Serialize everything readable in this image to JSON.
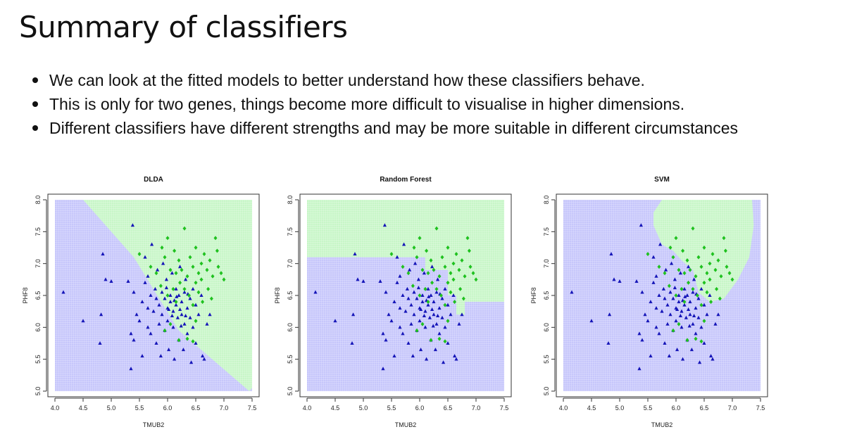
{
  "slide": {
    "title": "Summary of classifiers",
    "bullets": [
      "We can look at the fitted models to better understand how these classifiers behave.",
      "This is only for two genes, things become more difficult to visualise in higher dimensions.",
      "Different classifiers have different strengths and may be more suitable in different circumstances"
    ]
  },
  "colors": {
    "region_blue": "#c6c6fb",
    "region_green": "#c7f6c7",
    "point_blue": "#1515b8",
    "point_green": "#1fc11f"
  },
  "chart_data": [
    {
      "type": "scatter",
      "title": "DLDA",
      "xlabel": "TMUB2",
      "ylabel": "PHF8",
      "xlim": [
        4.0,
        7.5
      ],
      "ylim": [
        5.0,
        8.0
      ],
      "xticks": [
        "4.0",
        "4.5",
        "5.0",
        "5.5",
        "6.0",
        "6.5",
        "7.0",
        "7.5"
      ],
      "yticks": [
        "5.0",
        "5.5",
        "6.0",
        "6.5",
        "7.0",
        "7.5",
        "8.0"
      ],
      "background": "gridded decision regions (blue / green)",
      "regions": {
        "green": [
          [
            4.5,
            8.0
          ],
          [
            7.5,
            8.0
          ],
          [
            7.5,
            5.05
          ],
          [
            7.45,
            5.0
          ],
          [
            6.2,
            5.95
          ],
          [
            5.4,
            7.1
          ]
        ]
      },
      "series": []
    },
    {
      "type": "scatter",
      "title": "Random Forest",
      "xlabel": "TMUB2",
      "ylabel": "PHF8",
      "xlim": [
        4.0,
        7.5
      ],
      "ylim": [
        5.0,
        8.0
      ],
      "xticks": [
        "4.0",
        "4.5",
        "5.0",
        "5.5",
        "6.0",
        "6.5",
        "7.0",
        "7.5"
      ],
      "yticks": [
        "5.0",
        "5.5",
        "6.0",
        "6.5",
        "7.0",
        "7.5",
        "8.0"
      ],
      "background": "gridded decision regions (blue / green)",
      "regions": {
        "green": [
          [
            4.0,
            8.0
          ],
          [
            7.5,
            8.0
          ],
          [
            7.5,
            6.4
          ],
          [
            6.8,
            6.4
          ],
          [
            6.8,
            6.2
          ],
          [
            6.65,
            6.2
          ],
          [
            6.65,
            6.5
          ],
          [
            6.5,
            6.5
          ],
          [
            6.5,
            6.9
          ],
          [
            6.1,
            6.9
          ],
          [
            6.1,
            7.1
          ],
          [
            4.0,
            7.1
          ]
        ],
        "blue": [
          [
            4.0,
            7.0
          ],
          [
            5.0,
            7.0
          ],
          [
            5.0,
            7.1
          ],
          [
            4.0,
            7.1
          ]
        ]
      },
      "series": []
    },
    {
      "type": "scatter",
      "title": "SVM",
      "xlabel": "TMUB2",
      "ylabel": "PHF8",
      "xlim": [
        4.0,
        7.5
      ],
      "ylim": [
        5.0,
        8.0
      ],
      "xticks": [
        "4.0",
        "4.5",
        "5.0",
        "5.5",
        "6.0",
        "6.5",
        "7.0",
        "7.5"
      ],
      "yticks": [
        "5.0",
        "5.5",
        "6.0",
        "6.5",
        "7.0",
        "7.5",
        "8.0"
      ],
      "background": "gridded decision regions (blue / green)",
      "regions": {
        "green": [
          [
            5.75,
            8.0
          ],
          [
            7.35,
            8.0
          ],
          [
            7.38,
            7.6
          ],
          [
            7.3,
            7.1
          ],
          [
            7.1,
            6.75
          ],
          [
            6.85,
            6.45
          ],
          [
            6.6,
            6.4
          ],
          [
            6.4,
            6.55
          ],
          [
            6.3,
            6.9
          ],
          [
            6.1,
            7.05
          ],
          [
            5.95,
            7.2
          ],
          [
            5.75,
            7.3
          ],
          [
            5.6,
            7.6
          ],
          [
            5.6,
            7.8
          ]
        ]
      },
      "series": []
    }
  ],
  "points": {
    "blue": [
      [
        4.15,
        6.55
      ],
      [
        4.5,
        6.1
      ],
      [
        4.8,
        5.75
      ],
      [
        4.82,
        6.2
      ],
      [
        4.85,
        7.15
      ],
      [
        4.9,
        6.75
      ],
      [
        5.0,
        6.72
      ],
      [
        5.3,
        6.72
      ],
      [
        5.35,
        5.9
      ],
      [
        5.35,
        5.35
      ],
      [
        5.38,
        7.6
      ],
      [
        5.4,
        6.55
      ],
      [
        5.4,
        5.8
      ],
      [
        5.45,
        6.2
      ],
      [
        5.5,
        6.1
      ],
      [
        5.55,
        6.4
      ],
      [
        5.55,
        5.55
      ],
      [
        5.6,
        6.7
      ],
      [
        5.6,
        7.1
      ],
      [
        5.65,
        6.8
      ],
      [
        5.65,
        6.3
      ],
      [
        5.65,
        6.0
      ],
      [
        5.7,
        6.5
      ],
      [
        5.7,
        5.9
      ],
      [
        5.72,
        7.3
      ],
      [
        5.75,
        6.25
      ],
      [
        5.78,
        6.6
      ],
      [
        5.8,
        6.45
      ],
      [
        5.8,
        5.75
      ],
      [
        5.82,
        6.9
      ],
      [
        5.85,
        6.35
      ],
      [
        5.85,
        6.05
      ],
      [
        5.88,
        5.55
      ],
      [
        5.9,
        6.55
      ],
      [
        5.9,
        6.2
      ],
      [
        5.92,
        7.0
      ],
      [
        5.95,
        6.45
      ],
      [
        5.95,
        5.95
      ],
      [
        5.98,
        6.75
      ],
      [
        6.0,
        6.3
      ],
      [
        6.0,
        6.1
      ],
      [
        6.02,
        5.65
      ],
      [
        6.05,
        6.5
      ],
      [
        6.05,
        6.4
      ],
      [
        6.08,
        6.85
      ],
      [
        6.1,
        6.25
      ],
      [
        6.1,
        6.0
      ],
      [
        6.12,
        5.5
      ],
      [
        6.15,
        6.6
      ],
      [
        6.15,
        6.35
      ],
      [
        6.18,
        6.15
      ],
      [
        6.2,
        6.5
      ],
      [
        6.2,
        5.8
      ],
      [
        6.22,
        6.95
      ],
      [
        6.25,
        6.4
      ],
      [
        6.25,
        6.2
      ],
      [
        6.28,
        5.65
      ],
      [
        6.3,
        6.55
      ],
      [
        6.3,
        6.05
      ],
      [
        6.32,
        6.75
      ],
      [
        6.35,
        6.3
      ],
      [
        6.35,
        5.9
      ],
      [
        6.4,
        6.45
      ],
      [
        6.4,
        6.15
      ],
      [
        6.42,
        5.45
      ],
      [
        6.45,
        6.6
      ],
      [
        6.45,
        6.0
      ],
      [
        6.5,
        6.35
      ],
      [
        6.5,
        5.75
      ],
      [
        6.55,
        6.2
      ],
      [
        6.6,
        6.5
      ],
      [
        6.62,
        5.55
      ],
      [
        6.65,
        5.5
      ],
      [
        6.7,
        6.05
      ],
      [
        6.75,
        6.2
      ],
      [
        5.98,
        6.62
      ],
      [
        6.08,
        6.18
      ],
      [
        6.16,
        6.48
      ],
      [
        6.24,
        6.02
      ],
      [
        6.36,
        6.52
      ],
      [
        6.02,
        6.28
      ],
      [
        6.12,
        6.42
      ],
      [
        6.22,
        6.28
      ],
      [
        6.32,
        6.18
      ]
    ],
    "green": [
      [
        5.5,
        7.15
      ],
      [
        5.7,
        6.95
      ],
      [
        5.8,
        6.85
      ],
      [
        5.9,
        7.25
      ],
      [
        5.95,
        7.1
      ],
      [
        6.0,
        7.4
      ],
      [
        6.05,
        6.9
      ],
      [
        6.1,
        6.6
      ],
      [
        6.12,
        7.2
      ],
      [
        6.15,
        6.4
      ],
      [
        6.2,
        7.05
      ],
      [
        6.22,
        6.7
      ],
      [
        6.25,
        6.9
      ],
      [
        6.3,
        6.6
      ],
      [
        6.3,
        7.55
      ],
      [
        6.35,
        6.8
      ],
      [
        6.38,
        6.5
      ],
      [
        6.4,
        7.1
      ],
      [
        6.45,
        6.95
      ],
      [
        6.45,
        6.35
      ],
      [
        6.5,
        6.7
      ],
      [
        6.5,
        7.25
      ],
      [
        6.55,
        6.85
      ],
      [
        6.55,
        6.55
      ],
      [
        6.6,
        7.0
      ],
      [
        6.6,
        6.75
      ],
      [
        6.62,
        6.4
      ],
      [
        6.65,
        7.15
      ],
      [
        6.7,
        6.9
      ],
      [
        6.72,
        6.6
      ],
      [
        6.75,
        7.05
      ],
      [
        6.78,
        6.45
      ],
      [
        6.8,
        6.8
      ],
      [
        6.85,
        7.4
      ],
      [
        6.88,
        7.2
      ],
      [
        6.9,
        6.95
      ],
      [
        6.95,
        6.85
      ],
      [
        7.0,
        6.75
      ],
      [
        5.95,
        5.95
      ],
      [
        6.05,
        6.05
      ],
      [
        6.2,
        5.8
      ],
      [
        6.35,
        5.82
      ],
      [
        6.45,
        5.78
      ],
      [
        6.0,
        6.5
      ],
      [
        6.15,
        6.85
      ],
      [
        5.88,
        6.65
      ],
      [
        6.5,
        6.1
      ]
    ]
  }
}
